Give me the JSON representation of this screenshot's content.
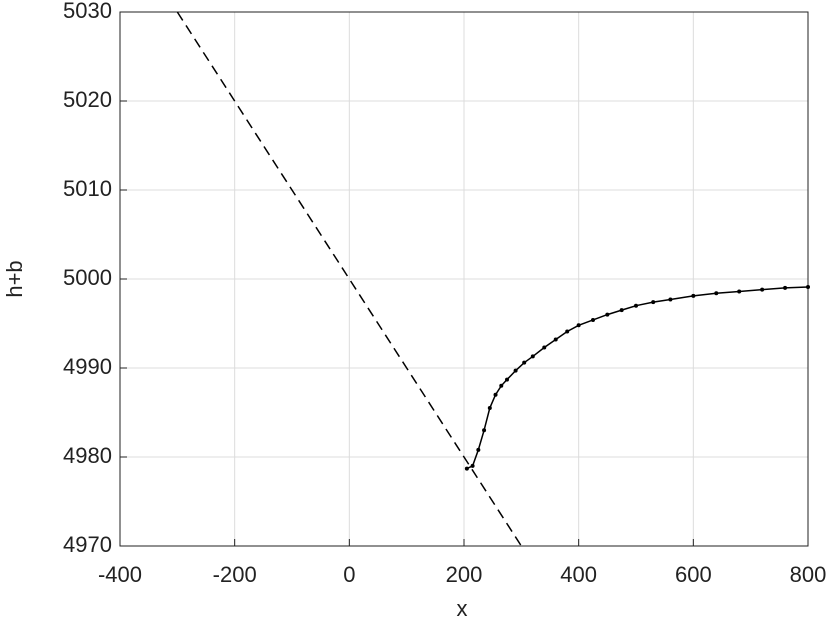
{
  "chart_data": {
    "type": "line",
    "xlabel": "x",
    "ylabel": "h+b",
    "xlim": [
      -400,
      800
    ],
    "xticks": [
      -400,
      -200,
      0,
      200,
      400,
      600,
      800
    ],
    "ylim": [
      4970,
      5030
    ],
    "yticks": [
      4970,
      4980,
      4990,
      5000,
      5010,
      5020,
      5030
    ],
    "grid": true,
    "series": [
      {
        "color": "#000000",
        "linestyle": "dashed",
        "x": [
          -300,
          300
        ],
        "values": [
          5030,
          4970
        ]
      },
      {
        "color": "#000000",
        "linestyle": "solid",
        "x": [
          205,
          215,
          225,
          235,
          245,
          255,
          265,
          275,
          290,
          305,
          320,
          340,
          360,
          380,
          400,
          425,
          450,
          475,
          500,
          530,
          560,
          600,
          640,
          680,
          720,
          760,
          800
        ],
        "values": [
          4978.7,
          4979.0,
          4980.8,
          4983.0,
          4985.5,
          4987.0,
          4988.0,
          4988.7,
          4989.7,
          4990.6,
          4991.3,
          4992.3,
          4993.2,
          4994.1,
          4994.8,
          4995.4,
          4996.0,
          4996.5,
          4997.0,
          4997.4,
          4997.7,
          4998.1,
          4998.4,
          4998.6,
          4998.8,
          4999.0,
          4999.1
        ]
      },
      {
        "color": "#000000",
        "linestyle": "none",
        "marker": "dot",
        "x": [
          205,
          215,
          225,
          235,
          245,
          255,
          265,
          275,
          290,
          305,
          320,
          340,
          360,
          380,
          400,
          425,
          450,
          475,
          500,
          530,
          560,
          600,
          640,
          680,
          720,
          760,
          800
        ],
        "values": [
          4978.7,
          4979.0,
          4980.8,
          4983.0,
          4985.5,
          4987.0,
          4988.0,
          4988.7,
          4989.7,
          4990.6,
          4991.3,
          4992.3,
          4993.2,
          4994.1,
          4994.8,
          4995.4,
          4996.0,
          4996.5,
          4997.0,
          4997.4,
          4997.7,
          4998.1,
          4998.4,
          4998.6,
          4998.8,
          4999.0,
          4999.1
        ]
      }
    ]
  }
}
